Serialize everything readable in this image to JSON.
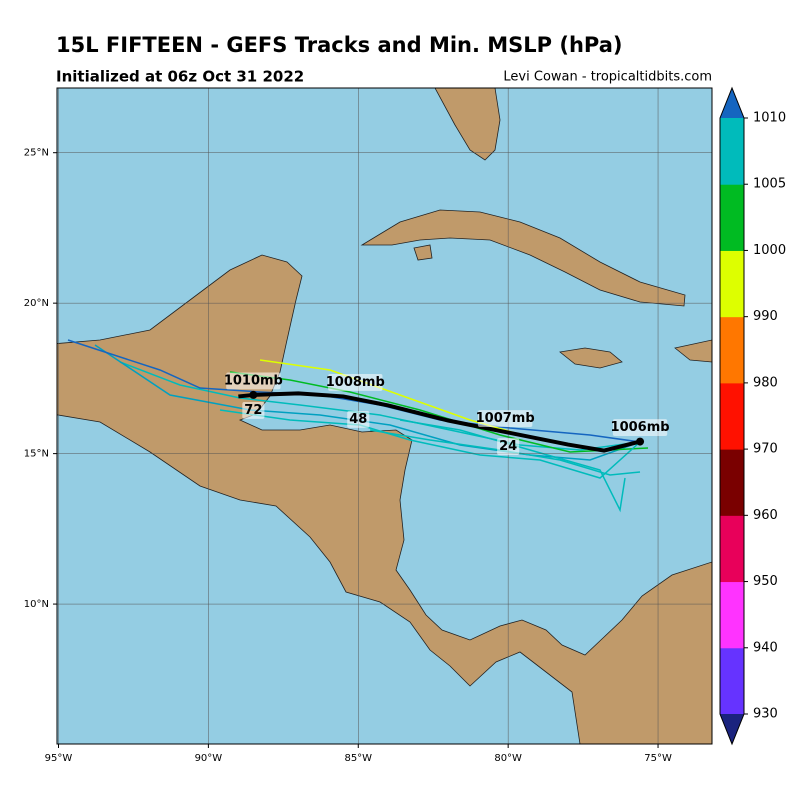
{
  "title": "15L FIFTEEN - GEFS Tracks and Min. MSLP (hPa)",
  "subtitle": "Initialized at 06z Oct 31 2022",
  "credit": "Levi Cowan - tropicaltidbits.com",
  "map": {
    "lonlim": [
      -95.05,
      -73.2
    ],
    "latlim": [
      5.35,
      27.15
    ],
    "lonticks": [
      {
        "value": -95,
        "label": "95°W"
      },
      {
        "value": -90,
        "label": "90°W"
      },
      {
        "value": -85,
        "label": "85°W"
      },
      {
        "value": -80,
        "label": "80°W"
      },
      {
        "value": -75,
        "label": "75°W"
      }
    ],
    "latticks": [
      {
        "value": 10,
        "label": "10°N"
      },
      {
        "value": 15,
        "label": "15°N"
      },
      {
        "value": 20,
        "label": "20°N"
      },
      {
        "value": 25,
        "label": "25°N"
      }
    ]
  },
  "mean_track": {
    "lon": [
      -75.6,
      -76.8,
      -78.0,
      -80.0,
      -82.0,
      -84.0,
      -85.5,
      -87.0,
      -88.5,
      -89.0
    ],
    "lat": [
      15.4,
      15.1,
      15.3,
      15.7,
      16.1,
      16.6,
      16.9,
      17.0,
      16.95,
      16.9
    ],
    "pressure_labels": [
      {
        "text": "1006mb",
        "lon": -75.6,
        "lat": 15.4
      },
      {
        "text": "1007mb",
        "lon": -80.1,
        "lat": 15.7
      },
      {
        "text": "1008mb",
        "lon": -85.1,
        "lat": 16.9
      },
      {
        "text": "1010mb",
        "lon": -88.5,
        "lat": 16.95
      }
    ],
    "hour_labels": [
      {
        "text": "24",
        "lon": -80.0,
        "lat": 15.7
      },
      {
        "text": "48",
        "lon": -85.0,
        "lat": 16.6
      },
      {
        "text": "72",
        "lon": -88.5,
        "lat": 16.9
      }
    ]
  },
  "colorbar": {
    "ticks": [
      930,
      940,
      950,
      960,
      970,
      980,
      990,
      1000,
      1005,
      1010
    ],
    "colors": [
      "#6633ff",
      "#ff33ff",
      "#e8005a",
      "#7a0000",
      "#ff1100",
      "#ff7700",
      "#ddff00",
      "#00bb22",
      "#00bbbb"
    ],
    "under_color": "#1a237e",
    "over_color": "#1565c0"
  }
}
